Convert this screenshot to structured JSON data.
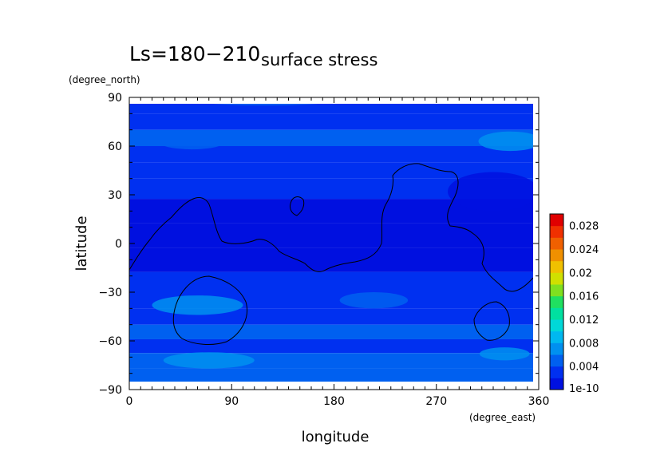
{
  "chart_data": {
    "type": "heatmap",
    "title": {
      "prefix": "Ls=180−210",
      "main": "surface stress"
    },
    "xlabel": "longitude",
    "ylabel": "latitude",
    "x_units": "(degree_east)",
    "y_units": "(degree_north)",
    "xlim": [
      0,
      360
    ],
    "ylim": [
      -90,
      90
    ],
    "x_ticks": [
      0,
      90,
      180,
      270,
      360
    ],
    "x_tick_labels": [
      "0",
      "90",
      "180",
      "270",
      "360"
    ],
    "y_ticks": [
      90,
      60,
      30,
      0,
      -30,
      -60,
      -90
    ],
    "y_tick_labels": [
      "90",
      "60",
      "30",
      "0",
      "−30",
      "−60",
      "−90"
    ],
    "colorbar": {
      "min_label": "1e-10",
      "tick_labels": [
        "0.004",
        "0.008",
        "0.012",
        "0.016",
        "0.02",
        "0.024",
        "0.028"
      ],
      "colors": [
        "#0010e0",
        "#0030f0",
        "#0060f0",
        "#0090f0",
        "#00b8f0",
        "#00d8d8",
        "#00e0a0",
        "#20e060",
        "#80e020",
        "#d0e000",
        "#f0c000",
        "#f09000",
        "#f06000",
        "#f03000",
        "#e00000"
      ]
    },
    "latitude_bands": [
      {
        "lat": 85,
        "value": 0.0035
      },
      {
        "lat": 75,
        "value": 0.0028
      },
      {
        "lat": 65,
        "value": 0.0042
      },
      {
        "lat": 55,
        "value": 0.003
      },
      {
        "lat": 45,
        "value": 0.0024
      },
      {
        "lat": 35,
        "value": 0.002
      },
      {
        "lat": 20,
        "value": 0.0016
      },
      {
        "lat": 5,
        "value": 0.0014
      },
      {
        "lat": -10,
        "value": 0.0018
      },
      {
        "lat": -25,
        "value": 0.003
      },
      {
        "lat": -35,
        "value": 0.0036
      },
      {
        "lat": -45,
        "value": 0.003
      },
      {
        "lat": -55,
        "value": 0.005
      },
      {
        "lat": -63,
        "value": 0.0024
      },
      {
        "lat": -72,
        "value": 0.0042
      },
      {
        "lat": -82,
        "value": 0.005
      }
    ]
  }
}
